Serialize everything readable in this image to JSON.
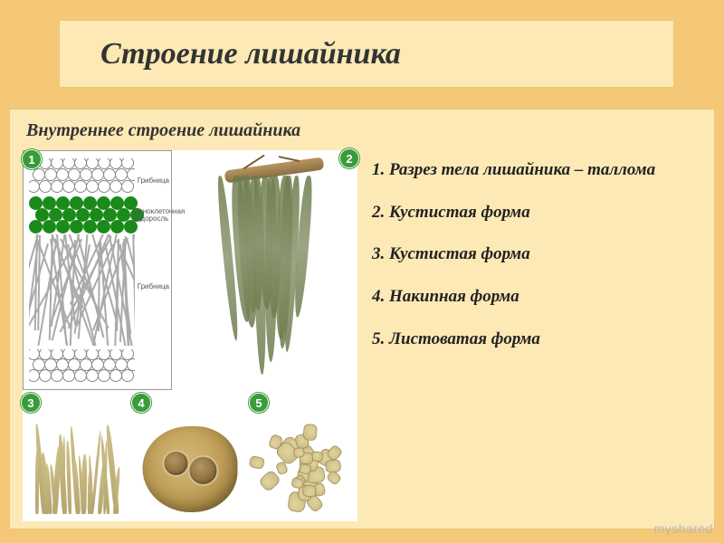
{
  "title": "Строение лишайника",
  "title_fontsize": 34,
  "subtitle": "Внутреннее строение лишайника",
  "subtitle_fontsize": 20,
  "list_fontsize": 19,
  "colors": {
    "page_bg": "#f4c876",
    "box_bg": "#fce9b5",
    "box_border": "#e8c878",
    "text": "#333333",
    "badge_bg": "#3a9b3a",
    "badge_text": "#ffffff",
    "algae": "#1a8a1a",
    "hypha": "#aaaaaa",
    "usnea": "#7a8a5a",
    "crust_outer": "#8d6f3a",
    "foliose": "#c9ba7e"
  },
  "list": [
    "1.   Разрез тела лишайника – таллома",
    "2. Кустистая форма",
    "3. Кустистая форма",
    "4. Накипная форма",
    "5. Листоватая форма"
  ],
  "diagram": {
    "badges": [
      "1",
      "2",
      "3",
      "4",
      "5"
    ],
    "panel1_labels": {
      "top": "Грибница",
      "mid": "Одноклеточная водоросль",
      "bot": "Грибница"
    }
  },
  "watermark": {
    "pre": "myshared",
    "accent": ""
  }
}
